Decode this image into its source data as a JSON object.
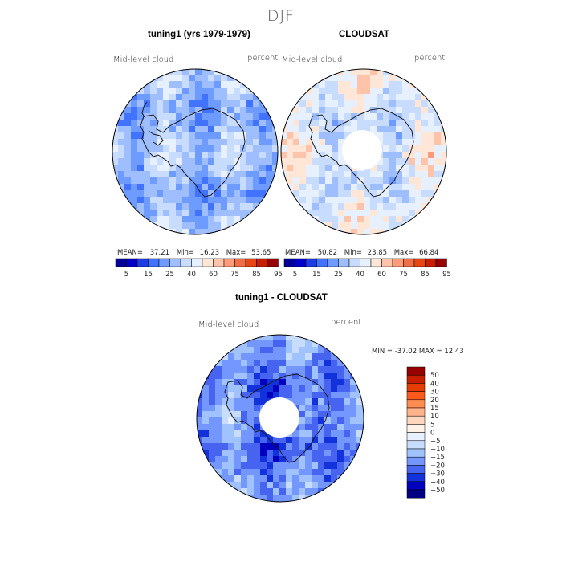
{
  "figure": {
    "title": "DJF",
    "colors": {
      "coastline": "#1a1a1a",
      "data_gap": "#ffffff"
    }
  },
  "panels": [
    {
      "title": "tuning1 (yrs 1979-1979)",
      "left_label": "Mid-level cloud",
      "right_label": "percent",
      "stats": {
        "mean_label": "MEAN=",
        "mean": "37.21",
        "min_label": "Min=",
        "min": "16.23",
        "max_label": "Max=",
        "max": "53.65"
      },
      "field": {
        "base_level": 2,
        "polar_gap": false
      }
    },
    {
      "title": "CLOUDSAT",
      "left_label": "Mid-level cloud",
      "right_label": "percent",
      "stats": {
        "mean_label": "MEAN=",
        "mean": "50.82",
        "min_label": "Min=",
        "min": "23.85",
        "max_label": "Max=",
        "max": "66.84"
      },
      "field": {
        "base_level": 6,
        "polar_gap": true
      }
    }
  ],
  "diff_panel": {
    "title": "tuning1 - CLOUDSAT",
    "left_label": "Mid-level cloud",
    "right_label": "percent",
    "minmax": "MIN = -37.02 MAX =  12.43",
    "field": {
      "base_level": 4,
      "polar_gap": true
    }
  },
  "chart_data": {
    "type": "heatmap",
    "projection": "south-polar-stereographic",
    "abs_colorbar": {
      "orientation": "horizontal",
      "tick_labels": [
        "5",
        "15",
        "25",
        "40",
        "60",
        "75",
        "85",
        "95"
      ],
      "colors": [
        "#000096",
        "#0000c8",
        "#1e3ce6",
        "#4173ff",
        "#6e9bff",
        "#9ebeff",
        "#c8dcff",
        "#e6f0ff",
        "#ffe6d7",
        "#ffc3aa",
        "#ff9b78",
        "#f06e46",
        "#e64614",
        "#c81e00",
        "#960000"
      ]
    },
    "diff_colorbar": {
      "orientation": "vertical",
      "labels_top_to_bottom": [
        "50",
        "40",
        "30",
        "20",
        "15",
        "10",
        "5",
        "0",
        "−5",
        "−10",
        "−15",
        "−20",
        "−30",
        "−40",
        "−50"
      ],
      "colors_top_to_bottom": [
        "#960000",
        "#c81e00",
        "#e63c00",
        "#ff5a1e",
        "#ff8c50",
        "#ffb48c",
        "#ffd7be",
        "#fff2e6",
        "#e6f0ff",
        "#c8dcff",
        "#a0c3ff",
        "#7396ff",
        "#4664f0",
        "#1432dc",
        "#0000be",
        "#000082"
      ]
    }
  }
}
